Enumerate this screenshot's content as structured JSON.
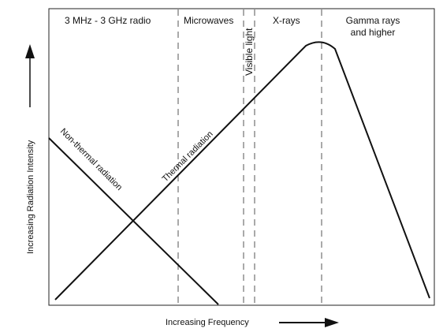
{
  "bands": [
    {
      "label": "3 MHz - 3 GHz radio"
    },
    {
      "label": "Microwaves"
    },
    {
      "label": "Visible light"
    },
    {
      "label": "X-rays"
    },
    {
      "label_lines": [
        "Gamma rays",
        "and higher"
      ]
    }
  ],
  "curves": {
    "non_thermal": {
      "label": "Non-thermal radiation"
    },
    "thermal": {
      "label": "Thermal radiation"
    }
  },
  "axes": {
    "x_label": "Increasing Frequency",
    "y_label": "Increasing Radiation Intensity"
  },
  "colors": {
    "line": "#111111",
    "dashed_divider": "#555555",
    "background": "#ffffff"
  }
}
